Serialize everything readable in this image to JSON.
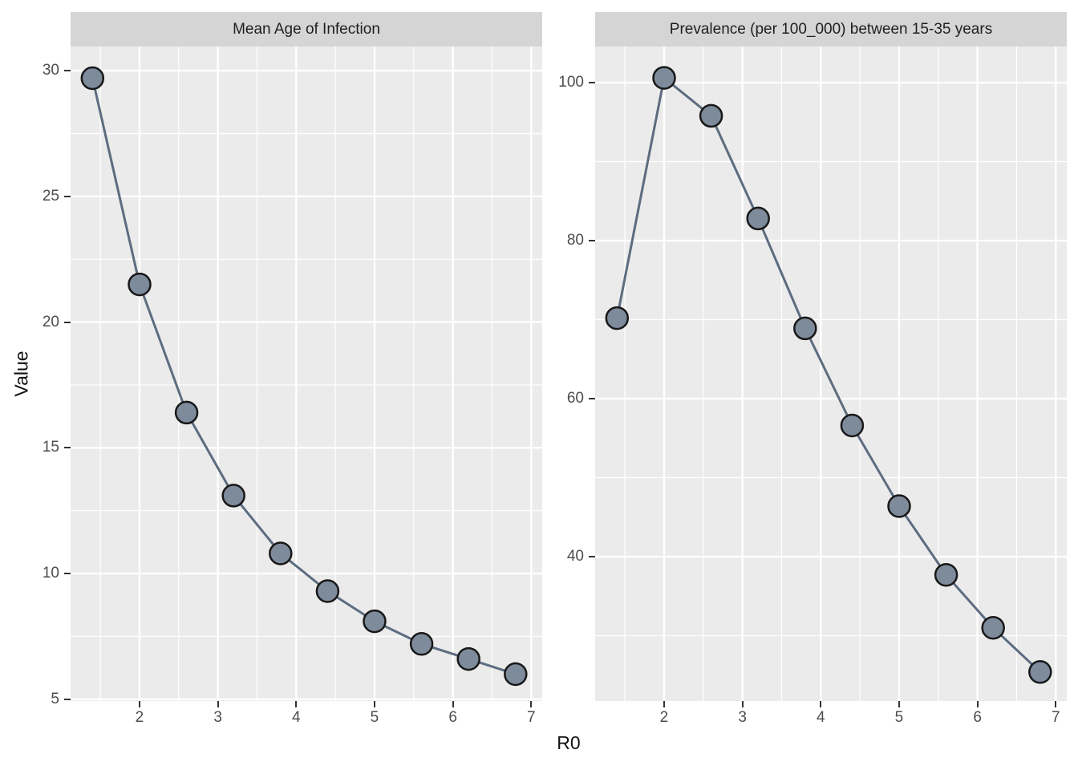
{
  "figure": {
    "xlabel": "R0",
    "ylabel": "Value"
  },
  "colors": {
    "figure_bg": "#ffffff",
    "panel_bg": "#ebebeb",
    "strip_bg": "#d5d5d5",
    "grid": "#ffffff",
    "line": "#5d6c80",
    "point_fill": "#7e8b9b",
    "point_stroke": "#181818",
    "tick_mark": "#333333",
    "tick_label": "#4d4d4d",
    "strip_text": "#1f1f1f"
  },
  "chart_data": [
    {
      "type": "line",
      "title": "Mean Age of Infection",
      "xlabel": "R0",
      "ylabel": "Value",
      "x": [
        1.4,
        2.0,
        2.6,
        3.2,
        3.8,
        4.4,
        5.0,
        5.6,
        6.2,
        6.8
      ],
      "values": [
        29.7,
        21.5,
        16.4,
        13.1,
        10.8,
        9.3,
        8.1,
        7.2,
        6.6,
        6.0
      ],
      "x_ticks": [
        2,
        3,
        4,
        5,
        6,
        7
      ],
      "y_ticks": [
        5,
        10,
        15,
        20,
        25,
        30
      ],
      "xlim": [
        1.12,
        7.14
      ],
      "ylim": [
        4.93,
        30.96
      ],
      "grid": "major-and-minor-white",
      "legend": false,
      "markers": "large-circles"
    },
    {
      "type": "line",
      "title": "Prevalence (per 100_000) between 15-35 years",
      "xlabel": "R0",
      "ylabel": "Value",
      "x": [
        1.4,
        2.0,
        2.6,
        3.2,
        3.8,
        4.4,
        5.0,
        5.6,
        6.2,
        6.8
      ],
      "values": [
        70.2,
        100.6,
        95.8,
        82.8,
        68.9,
        56.6,
        46.4,
        37.7,
        31.0,
        25.4
      ],
      "x_ticks": [
        2,
        3,
        4,
        5,
        6,
        7
      ],
      "y_ticks": [
        40,
        60,
        80,
        100
      ],
      "xlim": [
        1.12,
        7.14
      ],
      "ylim": [
        21.73,
        104.57
      ],
      "grid": "major-and-minor-white",
      "legend": false,
      "markers": "large-circles"
    }
  ]
}
